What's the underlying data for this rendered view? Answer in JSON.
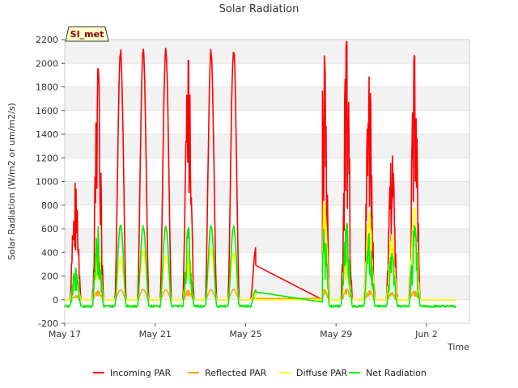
{
  "chart_data": {
    "type": "line",
    "title": "Solar Radiation",
    "xlabel": "Time",
    "ylabel": "Solar Radiation (W/m2 or um/m2/s)",
    "site_label": "SI_met",
    "ylim": [
      -200,
      2200
    ],
    "yticks": [
      -200,
      0,
      200,
      400,
      600,
      800,
      1000,
      1200,
      1400,
      1600,
      1800,
      2000,
      2200
    ],
    "xlim_days": [
      0,
      17.9
    ],
    "xticks": [
      {
        "day": 0,
        "label": "May 17"
      },
      {
        "day": 4,
        "label": "May 21"
      },
      {
        "day": 8,
        "label": "May 25"
      },
      {
        "day": 12,
        "label": "May 29"
      },
      {
        "day": 16,
        "label": "Jun 2"
      }
    ],
    "gap": {
      "start_day": 8.45,
      "end_day": 11.4
    },
    "series": [
      {
        "name": "Incoming PAR",
        "color": "#ff0000",
        "daily_peaks": [
          990,
          1960,
          2130,
          2160,
          2140,
          2030,
          2130,
          2150,
          460,
          2070,
          2190,
          1890,
          1250,
          2070
        ],
        "gap_start_value": 290,
        "gap_end_value": 0
      },
      {
        "name": "Reflected PAR",
        "color": "#ffa500",
        "daily_peaks": [
          45,
          75,
          85,
          88,
          85,
          80,
          85,
          88,
          15,
          85,
          90,
          80,
          60,
          80
        ],
        "gap_start_value": 10,
        "gap_end_value": 10
      },
      {
        "name": "Diffuse PAR",
        "color": "#ffff00",
        "daily_peaks": [
          210,
          480,
          360,
          420,
          380,
          420,
          440,
          400,
          80,
          830,
          400,
          750,
          550,
          780
        ],
        "gap_start_value": 0,
        "gap_end_value": 0
      },
      {
        "name": "Net Radiation",
        "color": "#00ee00",
        "daily_peaks": [
          270,
          620,
          650,
          630,
          630,
          610,
          630,
          630,
          90,
          600,
          650,
          560,
          390,
          630
        ],
        "night_value": -55,
        "gap_start_value": 65,
        "gap_end_value": -20
      }
    ]
  }
}
